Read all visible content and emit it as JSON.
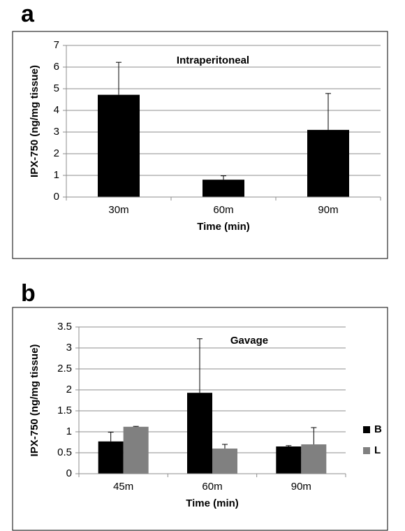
{
  "chart_data": [
    {
      "type": "bar",
      "panel": "a",
      "title": "Intraperitoneal",
      "x_label": "Time (min)",
      "y_label": "IPX-750 (ng/mg tissue)",
      "categories": [
        "30m",
        "60m",
        "90m"
      ],
      "series": [
        {
          "name": null,
          "color": "#000000",
          "values": [
            4.72,
            0.8,
            3.1
          ],
          "errors": [
            1.5,
            0.18,
            1.68
          ]
        }
      ],
      "ylim": [
        0,
        7
      ],
      "yticks": [
        0,
        1,
        2,
        3,
        4,
        5,
        6,
        7
      ],
      "grid": true,
      "legend": null
    },
    {
      "type": "bar",
      "panel": "b",
      "title": "Gavage",
      "x_label": "Time (min)",
      "y_label": "IPX-750 (ng/mg tissue)",
      "categories": [
        "45m",
        "60m",
        "90m"
      ],
      "series": [
        {
          "name": "B",
          "color": "#000000",
          "values": [
            0.77,
            1.93,
            0.65
          ],
          "errors": [
            0.22,
            1.29,
            0.02
          ]
        },
        {
          "name": "L",
          "color": "#808080",
          "values": [
            1.12,
            0.6,
            0.7
          ],
          "errors": [
            0.01,
            0.1,
            0.4
          ]
        }
      ],
      "ylim": [
        0,
        3.5
      ],
      "yticks": [
        0,
        0.5,
        1,
        1.5,
        2,
        2.5,
        3,
        3.5
      ],
      "grid": true,
      "legend": "right"
    }
  ]
}
